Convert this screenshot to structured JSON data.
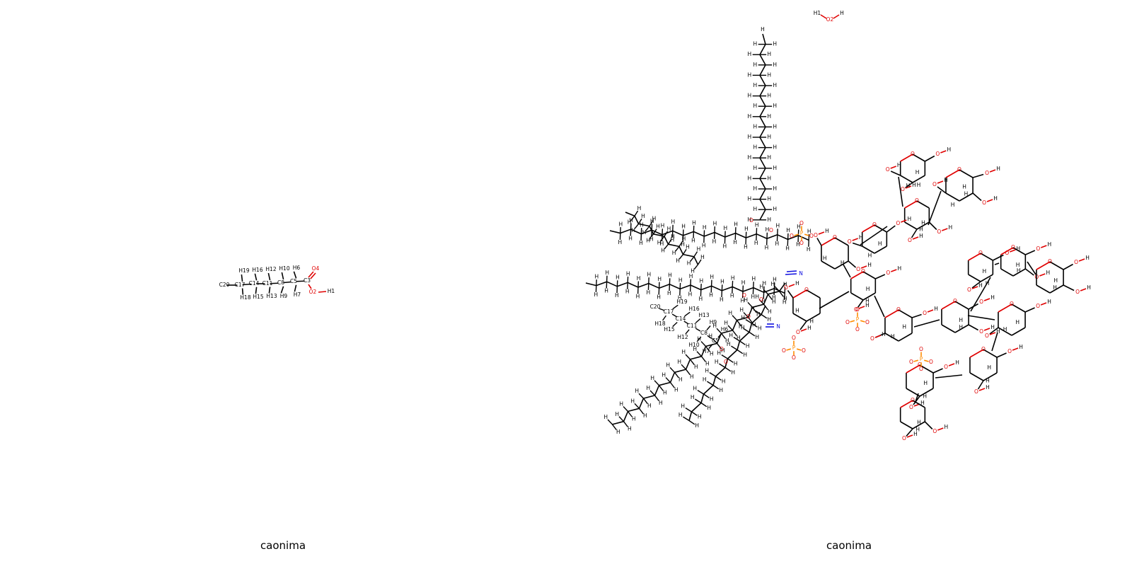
{
  "panels": [
    {
      "caption": "caonima"
    },
    {
      "caption": "caonima"
    }
  ],
  "left_molecule": {
    "atoms": [
      {
        "label": "C20",
        "color": "#000000"
      },
      {
        "label": "C17",
        "color": "#000000"
      },
      {
        "label": "C14",
        "color": "#000000"
      },
      {
        "label": "C11",
        "color": "#000000"
      },
      {
        "label": "C8",
        "color": "#000000"
      },
      {
        "label": "C5",
        "color": "#000000"
      },
      {
        "label": "C3",
        "color": "#000000"
      },
      {
        "label": "O4",
        "color": "#e00000"
      },
      {
        "label": "O2",
        "color": "#e00000"
      },
      {
        "label": "H1",
        "color": "#000000"
      },
      {
        "label": "H19",
        "color": "#000000"
      },
      {
        "label": "H18",
        "color": "#000000"
      },
      {
        "label": "H16",
        "color": "#000000"
      },
      {
        "label": "H15",
        "color": "#000000"
      },
      {
        "label": "H12",
        "color": "#000000"
      },
      {
        "label": "H13",
        "color": "#000000"
      },
      {
        "label": "H10",
        "color": "#000000"
      },
      {
        "label": "H9",
        "color": "#000000"
      },
      {
        "label": "H6",
        "color": "#000000"
      },
      {
        "label": "H7",
        "color": "#000000"
      }
    ]
  },
  "right_molecule": {
    "water": [
      {
        "label": "H1",
        "color": "#000000"
      },
      {
        "label": "O2",
        "color": "#e00000"
      },
      {
        "label": "H",
        "color": "#000000"
      }
    ],
    "fragment": [
      {
        "label": "C20",
        "color": "#000000"
      },
      {
        "label": "C17",
        "color": "#000000"
      },
      {
        "label": "C14",
        "color": "#000000"
      },
      {
        "label": "C11",
        "color": "#000000"
      },
      {
        "label": "C8",
        "color": "#000000"
      },
      {
        "label": "C5",
        "color": "#000000"
      },
      {
        "label": "H19",
        "color": "#000000"
      },
      {
        "label": "H18",
        "color": "#000000"
      },
      {
        "label": "H16",
        "color": "#000000"
      },
      {
        "label": "H15",
        "color": "#000000"
      },
      {
        "label": "H13",
        "color": "#000000"
      },
      {
        "label": "H12",
        "color": "#000000"
      },
      {
        "label": "H9",
        "color": "#000000"
      },
      {
        "label": "H10",
        "color": "#000000"
      },
      {
        "label": "H6",
        "color": "#000000"
      },
      {
        "label": "H7",
        "color": "#000000"
      }
    ],
    "element_labels": {
      "hydrogen": "H",
      "oxygen": "O",
      "nitrogen": "N",
      "phosphorus": "P"
    },
    "colors": {
      "bond": "#000000",
      "oxygen": "#e00000",
      "nitrogen": "#1010e0",
      "phosphorus": "#ff8c00"
    }
  }
}
